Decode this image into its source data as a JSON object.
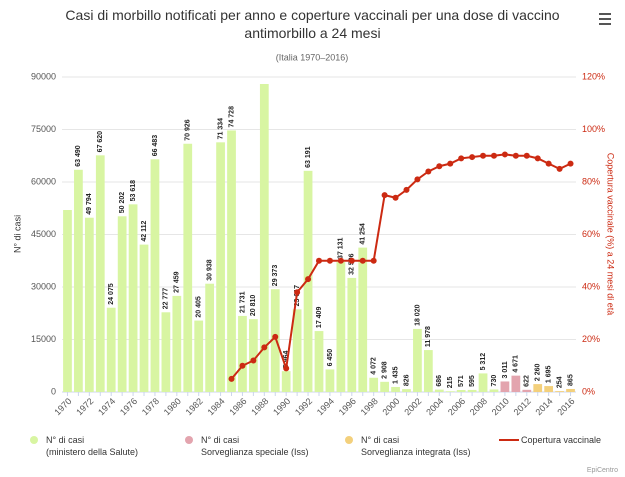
{
  "chart_data": {
    "type": "bar",
    "title": "Casi di morbillo notificati per anno e coperture vaccinali per una dose di vaccino antimorbillo a 24 mesi",
    "subtitle": "(Italia 1970–2016)",
    "y_label": "N° di casi",
    "y2_label": "Copertura vaccinale (%) a 24 mesi di età",
    "credits": "EpiCentro",
    "categories": [
      "1970",
      null,
      "1972",
      null,
      "1974",
      null,
      "1976",
      null,
      "1978",
      null,
      "1980",
      null,
      "1982",
      null,
      "1984",
      null,
      "1986",
      null,
      "1988",
      null,
      "1990",
      null,
      "1992",
      null,
      "1994",
      null,
      "1996",
      null,
      "1998",
      null,
      "2000",
      null,
      "2002",
      null,
      "2004",
      null,
      "2006",
      null,
      "2008",
      null,
      "2010",
      null,
      "2012",
      null,
      "2014",
      null,
      "2016"
    ],
    "ylim": [
      0,
      90000
    ],
    "yticks": [
      0,
      15000,
      30000,
      45000,
      60000,
      75000,
      90000
    ],
    "y2lim": [
      0,
      120
    ],
    "y2ticks": [
      {
        "value": 0,
        "label": "0%"
      },
      {
        "value": 20,
        "label": "20%"
      },
      {
        "value": 40,
        "label": "40%"
      },
      {
        "value": 60,
        "label": "60%"
      },
      {
        "value": 80,
        "label": "80%"
      },
      {
        "value": 100,
        "label": "100%"
      },
      {
        "value": 120,
        "label": "120%"
      }
    ],
    "grid": true,
    "series": [
      {
        "name": "N° di casi\n(ministero della Salute)",
        "type": "bar",
        "color": "#d8f5a2",
        "values": [
          52000,
          63490,
          49794,
          67620,
          24075,
          50202,
          53618,
          42112,
          66483,
          22777,
          27459,
          70926,
          20405,
          30938,
          71334,
          74728,
          21731,
          20810,
          88000,
          29373,
          5964,
          23617,
          63191,
          17409,
          6450,
          37131,
          32596,
          41254,
          4072,
          2908,
          1435,
          826,
          18020,
          11978,
          686,
          215,
          571,
          595,
          5312,
          730,
          null,
          null,
          null,
          null,
          null,
          null,
          null
        ],
        "value_labels": [
          null,
          "63 490",
          "49 794",
          "67 620",
          "24 075",
          "50 202",
          "53 618",
          "42 112",
          "66 483",
          "22 777",
          "27 459",
          "70 926",
          "20 405",
          "30 938",
          "71 334",
          "74 728",
          "21 731",
          "20 810",
          null,
          "29 373",
          "5 964",
          "23 617",
          "63 191",
          "17 409",
          "6 450",
          "37 131",
          "32 596",
          "41 254",
          "4 072",
          "2 908",
          "1 435",
          "826",
          "18 020",
          "11 978",
          "686",
          "215",
          "571",
          "595",
          "5 312",
          "730",
          null,
          null,
          null,
          null,
          null,
          null,
          null
        ]
      },
      {
        "name": "N° di casi\nSorveglianza speciale (Iss)",
        "type": "bar",
        "color": "#e3a4ae",
        "values": [
          null,
          null,
          null,
          null,
          null,
          null,
          null,
          null,
          null,
          null,
          null,
          null,
          null,
          null,
          null,
          null,
          null,
          null,
          null,
          null,
          null,
          null,
          null,
          null,
          null,
          null,
          null,
          null,
          null,
          null,
          null,
          null,
          null,
          null,
          null,
          null,
          null,
          null,
          null,
          null,
          3011,
          4671,
          622,
          null,
          null,
          null,
          null
        ],
        "value_labels": [
          null,
          null,
          null,
          null,
          null,
          null,
          null,
          null,
          null,
          null,
          null,
          null,
          null,
          null,
          null,
          null,
          null,
          null,
          null,
          null,
          null,
          null,
          null,
          null,
          null,
          null,
          null,
          null,
          null,
          null,
          null,
          null,
          null,
          null,
          null,
          null,
          null,
          null,
          null,
          null,
          "3 011",
          "4 671",
          "622",
          null,
          null,
          null,
          null
        ]
      },
      {
        "name": "N° di casi\nSorveglianza integrata (Iss)",
        "type": "bar",
        "color": "#f3d07c",
        "values": [
          null,
          null,
          null,
          null,
          null,
          null,
          null,
          null,
          null,
          null,
          null,
          null,
          null,
          null,
          null,
          null,
          null,
          null,
          null,
          null,
          null,
          null,
          null,
          null,
          null,
          null,
          null,
          null,
          null,
          null,
          null,
          null,
          null,
          null,
          null,
          null,
          null,
          null,
          null,
          null,
          null,
          null,
          null,
          2260,
          1695,
          254,
          865
        ],
        "value_labels": [
          null,
          null,
          null,
          null,
          null,
          null,
          null,
          null,
          null,
          null,
          null,
          null,
          null,
          null,
          null,
          null,
          null,
          null,
          null,
          null,
          null,
          null,
          null,
          null,
          null,
          null,
          null,
          null,
          null,
          null,
          null,
          null,
          null,
          null,
          null,
          null,
          null,
          null,
          null,
          null,
          null,
          null,
          null,
          "2 260",
          "1 695",
          "254",
          "865"
        ]
      },
      {
        "name": "Copertura vaccinale",
        "type": "line",
        "axis": "y2",
        "color": "#cc2a12",
        "values": [
          null,
          null,
          null,
          null,
          null,
          null,
          null,
          null,
          null,
          null,
          null,
          null,
          null,
          null,
          null,
          5,
          10,
          12,
          17,
          21,
          9,
          38,
          43,
          50,
          50,
          50,
          50,
          50,
          50,
          75,
          74,
          77,
          81,
          84,
          86,
          87,
          89,
          89.5,
          90,
          90,
          90.5,
          90,
          90,
          89,
          87,
          85,
          87
        ]
      }
    ]
  }
}
